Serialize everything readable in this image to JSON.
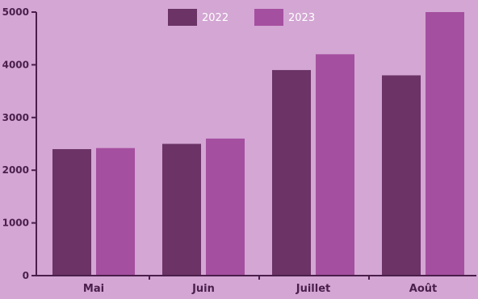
{
  "colors": {
    "background": "#d3a6d3",
    "axis": "#4a1f4a",
    "series_2022": "#6b3366",
    "series_2023": "#a54fa0",
    "text": "#4a1f4a",
    "legend_text": "#ffffff"
  },
  "chart_data": {
    "type": "bar",
    "title": "",
    "xlabel": "",
    "ylabel": "",
    "categories": [
      "Mai",
      "Juin",
      "Juillet",
      "Août"
    ],
    "series": [
      {
        "name": "2022",
        "values": [
          2400,
          2500,
          3900,
          3800
        ]
      },
      {
        "name": "2023",
        "values": [
          2420,
          2600,
          4200,
          5000
        ]
      }
    ],
    "ylim": [
      0,
      5000
    ],
    "yticks": [
      0,
      1000,
      2000,
      3000,
      4000,
      5000
    ],
    "grid": false,
    "legend_position": "top-center"
  }
}
